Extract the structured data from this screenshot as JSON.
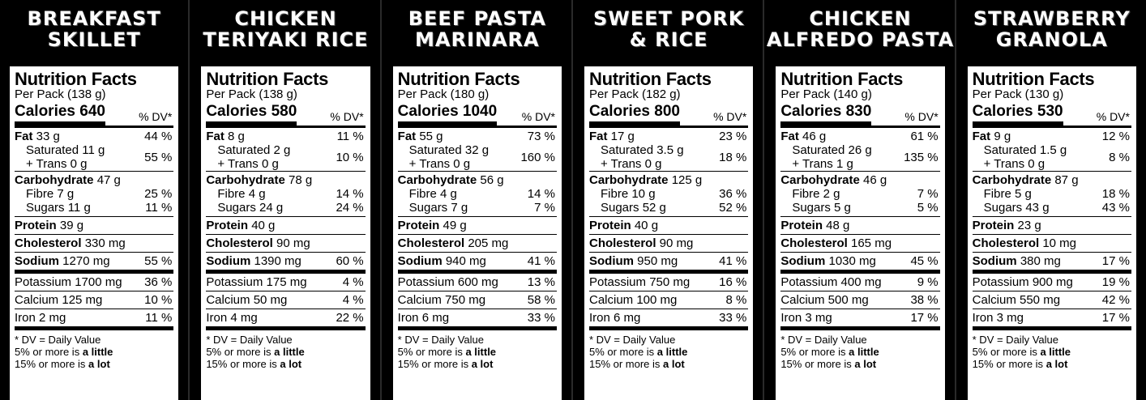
{
  "nf_title": "Nutrition Facts",
  "dv_header": "% DV*",
  "labels": {
    "calories": "Calories",
    "fat": "Fat",
    "saturated": "Saturated",
    "trans": "+ Trans",
    "carbohydrate": "Carbohydrate",
    "fibre": "Fibre",
    "sugars": "Sugars",
    "protein": "Protein",
    "cholesterol": "Cholesterol",
    "sodium": "Sodium",
    "potassium": "Potassium",
    "calcium": "Calcium",
    "iron": "Iron"
  },
  "footnote": {
    "line1": "* DV = Daily Value",
    "line2_pre": "5% or more is ",
    "line2_bold": "a little",
    "line3_pre": "15% or more is ",
    "line3_bold": "a lot"
  },
  "products": [
    {
      "title_line1": "BREAKFAST",
      "title_line2": "SKILLET",
      "per_pack": "Per Pack (138 g)",
      "calories": "640",
      "fat": "33 g",
      "fat_dv": "44 %",
      "sat": "11 g",
      "trans": "0 g",
      "sat_trans_dv": "55 %",
      "carb": "47 g",
      "fibre": "7 g",
      "fibre_dv": "25 %",
      "sugars": "11 g",
      "sugars_dv": "11 %",
      "protein": "39 g",
      "cholesterol": "330 mg",
      "sodium": "1270 mg",
      "sodium_dv": "55 %",
      "potassium": "1700 mg",
      "potassium_dv": "36 %",
      "calcium": "125 mg",
      "calcium_dv": "10 %",
      "iron": "2 mg",
      "iron_dv": "11 %"
    },
    {
      "title_line1": "CHICKEN",
      "title_line2": "TERIYAKI RICE",
      "per_pack": "Per Pack (138 g)",
      "calories": "580",
      "fat": "8 g",
      "fat_dv": "11 %",
      "sat": "2 g",
      "trans": "0 g",
      "sat_trans_dv": "10 %",
      "carb": "78 g",
      "fibre": "4 g",
      "fibre_dv": "14 %",
      "sugars": "24 g",
      "sugars_dv": "24 %",
      "protein": "40 g",
      "cholesterol": "90 mg",
      "sodium": "1390 mg",
      "sodium_dv": "60 %",
      "potassium": "175 mg",
      "potassium_dv": "4 %",
      "calcium": "50 mg",
      "calcium_dv": "4 %",
      "iron": "4 mg",
      "iron_dv": "22 %"
    },
    {
      "title_line1": "BEEF PASTA",
      "title_line2": "MARINARA",
      "per_pack": "Per Pack (180 g)",
      "calories": "1040",
      "fat": "55 g",
      "fat_dv": "73 %",
      "sat": "32 g",
      "trans": "0 g",
      "sat_trans_dv": "160 %",
      "carb": "56 g",
      "fibre": "4 g",
      "fibre_dv": "14 %",
      "sugars": "7 g",
      "sugars_dv": "7 %",
      "protein": "49 g",
      "cholesterol": "205 mg",
      "sodium": "940 mg",
      "sodium_dv": "41 %",
      "potassium": "600 mg",
      "potassium_dv": "13 %",
      "calcium": "750 mg",
      "calcium_dv": "58 %",
      "iron": "6 mg",
      "iron_dv": "33 %"
    },
    {
      "title_line1": "SWEET PORK",
      "title_line2": "& RICE",
      "per_pack": "Per Pack (182 g)",
      "calories": "800",
      "fat": "17 g",
      "fat_dv": "23 %",
      "sat": "3.5 g",
      "trans": "0 g",
      "sat_trans_dv": "18 %",
      "carb": "125 g",
      "fibre": "10 g",
      "fibre_dv": "36 %",
      "sugars": "52 g",
      "sugars_dv": "52 %",
      "protein": "40 g",
      "cholesterol": "90 mg",
      "sodium": "950 mg",
      "sodium_dv": "41 %",
      "potassium": "750 mg",
      "potassium_dv": "16 %",
      "calcium": "100 mg",
      "calcium_dv": "8 %",
      "iron": "6 mg",
      "iron_dv": "33 %"
    },
    {
      "title_line1": "CHICKEN",
      "title_line2": "ALFREDO PASTA",
      "per_pack": "Per Pack (140 g)",
      "calories": "830",
      "fat": "46 g",
      "fat_dv": "61 %",
      "sat": "26 g",
      "trans": "1 g",
      "sat_trans_dv": "135 %",
      "carb": "46 g",
      "fibre": "2 g",
      "fibre_dv": "7 %",
      "sugars": "5 g",
      "sugars_dv": "5 %",
      "protein": "48 g",
      "cholesterol": "165 mg",
      "sodium": "1030 mg",
      "sodium_dv": "45 %",
      "potassium": "400 mg",
      "potassium_dv": "9 %",
      "calcium": "500 mg",
      "calcium_dv": "38 %",
      "iron": "3 mg",
      "iron_dv": "17 %"
    },
    {
      "title_line1": "STRAWBERRY",
      "title_line2": "GRANOLA",
      "per_pack": "Per Pack (130 g)",
      "calories": "530",
      "fat": "9 g",
      "fat_dv": "12 %",
      "sat": "1.5 g",
      "trans": "0 g",
      "sat_trans_dv": "8 %",
      "carb": "87 g",
      "fibre": "5 g",
      "fibre_dv": "18 %",
      "sugars": "43 g",
      "sugars_dv": "43 %",
      "protein": "23 g",
      "cholesterol": "10 mg",
      "sodium": "380 mg",
      "sodium_dv": "17 %",
      "potassium": "900 mg",
      "potassium_dv": "19 %",
      "calcium": "550 mg",
      "calcium_dv": "42 %",
      "iron": "3 mg",
      "iron_dv": "17 %"
    }
  ]
}
